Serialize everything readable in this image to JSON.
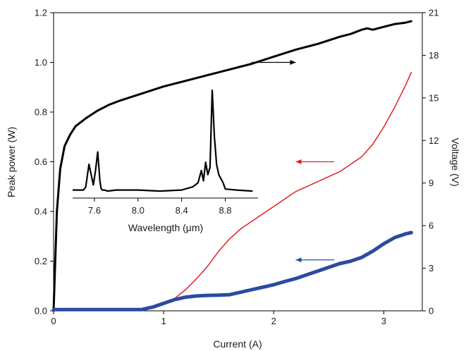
{
  "chart_data": [
    {
      "type": "line",
      "title": "",
      "xlabel": "Current (A)",
      "ylabel": "Peak power (W)",
      "y2label": "Voltage (V)",
      "xlim": [
        0,
        3.35
      ],
      "ylim": [
        0,
        1.2
      ],
      "y2lim": [
        0,
        21
      ],
      "xticks": [
        "0",
        "1",
        "2",
        "3"
      ],
      "yticks": [
        "0.0",
        "0.2",
        "0.4",
        "0.6",
        "0.8",
        "1.0",
        "1.2"
      ],
      "y2ticks": [
        "0",
        "3",
        "6",
        "9",
        "12",
        "15",
        "18",
        "21"
      ],
      "grid": false,
      "series": [
        {
          "axis": "right",
          "color": "#000000",
          "x": [
            0.0,
            0.03,
            0.06,
            0.1,
            0.15,
            0.2,
            0.3,
            0.4,
            0.5,
            0.6,
            0.8,
            1.0,
            1.2,
            1.4,
            1.6,
            1.8,
            2.0,
            2.2,
            2.4,
            2.6,
            2.7,
            2.8,
            2.85,
            2.9,
            3.0,
            3.1,
            3.2,
            3.25
          ],
          "y": [
            0.0,
            7.0,
            10.0,
            11.6,
            12.4,
            13.0,
            13.6,
            14.1,
            14.5,
            14.8,
            15.3,
            15.8,
            16.2,
            16.6,
            17.0,
            17.4,
            17.9,
            18.4,
            18.8,
            19.3,
            19.5,
            19.8,
            19.9,
            19.8,
            20.0,
            20.2,
            20.3,
            20.4
          ],
          "arrow": {
            "from": [
              1.8,
              1.0
            ],
            "to": [
              2.2,
              1.0
            ]
          }
        },
        {
          "axis": "left",
          "color": "#e0202a",
          "x": [
            0.0,
            0.8,
            0.9,
            1.0,
            1.1,
            1.2,
            1.3,
            1.4,
            1.5,
            1.6,
            1.7,
            1.8,
            1.9,
            2.0,
            2.1,
            2.2,
            2.3,
            2.4,
            2.5,
            2.6,
            2.7,
            2.8,
            2.9,
            3.0,
            3.1,
            3.2,
            3.25
          ],
          "y": [
            0.005,
            0.005,
            0.01,
            0.025,
            0.05,
            0.085,
            0.13,
            0.18,
            0.24,
            0.29,
            0.33,
            0.36,
            0.39,
            0.42,
            0.45,
            0.48,
            0.5,
            0.52,
            0.54,
            0.56,
            0.59,
            0.62,
            0.67,
            0.74,
            0.82,
            0.91,
            0.96
          ],
          "arrow": {
            "from": [
              2.55,
              0.6
            ],
            "to": [
              2.2,
              0.6
            ]
          }
        },
        {
          "axis": "left",
          "color": "#2b4ba0",
          "x": [
            0.0,
            0.8,
            0.9,
            1.0,
            1.1,
            1.2,
            1.3,
            1.4,
            1.5,
            1.6,
            1.7,
            1.8,
            1.9,
            2.0,
            2.1,
            2.2,
            2.3,
            2.4,
            2.5,
            2.6,
            2.7,
            2.8,
            2.9,
            3.0,
            3.1,
            3.2,
            3.25
          ],
          "y": [
            0.005,
            0.005,
            0.015,
            0.03,
            0.045,
            0.055,
            0.06,
            0.062,
            0.063,
            0.065,
            0.075,
            0.085,
            0.095,
            0.105,
            0.118,
            0.13,
            0.145,
            0.16,
            0.175,
            0.19,
            0.2,
            0.215,
            0.24,
            0.27,
            0.295,
            0.31,
            0.315
          ],
          "arrow": {
            "from": [
              2.55,
              0.205
            ],
            "to": [
              2.2,
              0.205
            ]
          }
        }
      ]
    },
    {
      "type": "line",
      "title": "",
      "xlabel": "Wavelength (μm)",
      "ylabel": "",
      "xlim": [
        7.4,
        9.1
      ],
      "xticks": [
        "7.6",
        "8.0",
        "8.4",
        "8.8"
      ],
      "grid": false,
      "series": [
        {
          "color": "#000000",
          "x": [
            7.4,
            7.5,
            7.52,
            7.55,
            7.57,
            7.59,
            7.61,
            7.63,
            7.65,
            7.66,
            7.67,
            7.69,
            7.72,
            7.8,
            8.0,
            8.2,
            8.4,
            8.5,
            8.55,
            8.58,
            8.6,
            8.62,
            8.64,
            8.66,
            8.68,
            8.7,
            8.72,
            8.74,
            8.76,
            8.78,
            8.8,
            8.9,
            9.05
          ],
          "y": [
            0.03,
            0.03,
            0.06,
            0.28,
            0.18,
            0.08,
            0.22,
            0.4,
            0.12,
            0.05,
            0.03,
            0.03,
            0.02,
            0.03,
            0.03,
            0.02,
            0.03,
            0.06,
            0.1,
            0.22,
            0.12,
            0.3,
            0.18,
            0.25,
            1.0,
            0.55,
            0.28,
            0.18,
            0.14,
            0.1,
            0.04,
            0.03,
            0.02
          ]
        }
      ]
    }
  ]
}
